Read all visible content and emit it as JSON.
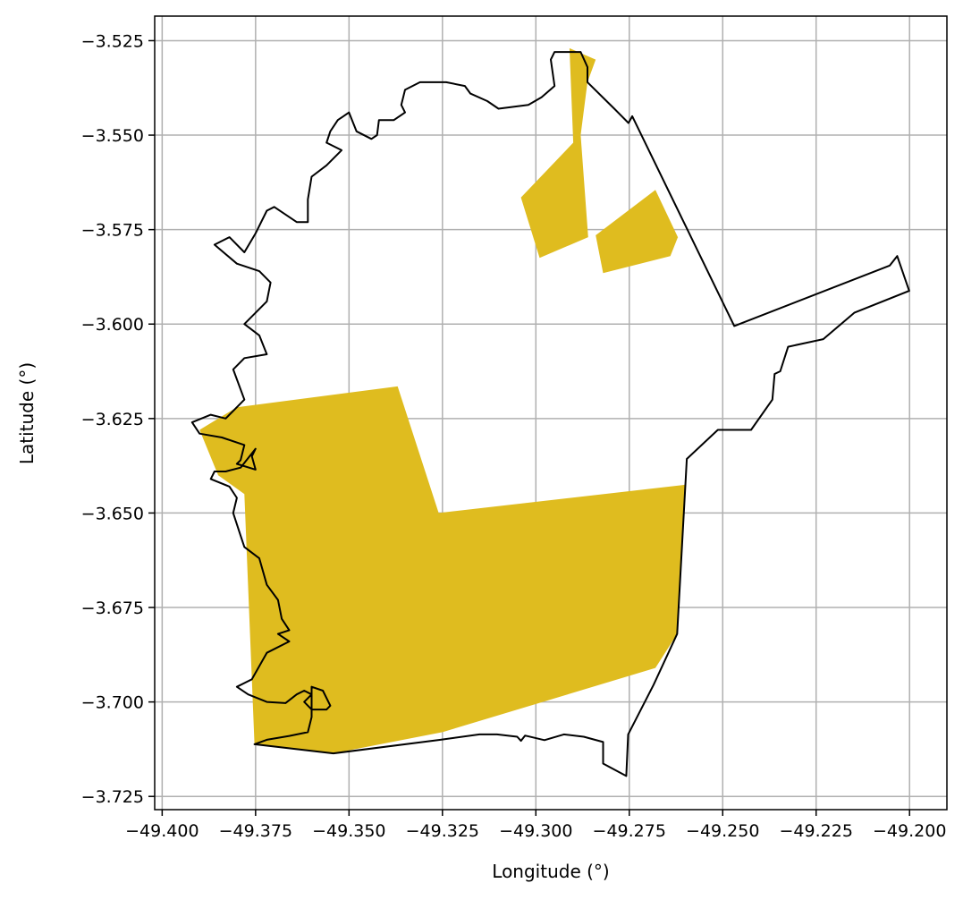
{
  "map": {
    "type": "map",
    "xlabel": "Longitude (°)",
    "ylabel": "Latitude (°)",
    "xlim": [
      -49.402,
      -49.19
    ],
    "ylim": [
      -3.7285,
      -3.5185
    ],
    "grid": true,
    "x_ticks": [
      -49.4,
      -49.375,
      -49.35,
      -49.325,
      -49.3,
      -49.275,
      -49.25,
      -49.225,
      -49.2
    ],
    "x_tick_labels": [
      "−49.400",
      "−49.375",
      "−49.350",
      "−49.325",
      "−49.300",
      "−49.275",
      "−49.250",
      "−49.225",
      "−49.200"
    ],
    "y_ticks": [
      -3.525,
      -3.55,
      -3.575,
      -3.6,
      -3.625,
      -3.65,
      -3.675,
      -3.7,
      -3.725
    ],
    "y_tick_labels": [
      "−3.525",
      "−3.550",
      "−3.575",
      "−3.600",
      "−3.625",
      "−3.650",
      "−3.675",
      "−3.700",
      "−3.725"
    ],
    "colors": {
      "fill": "#dfbc1f",
      "outline": "#000000",
      "grid": "#b0b0b0"
    },
    "boundary": [
      [
        -49.3753,
        -3.7112
      ],
      [
        -49.3542,
        -3.7136
      ],
      [
        -49.3255,
        -3.71
      ],
      [
        -49.3151,
        -3.7086
      ],
      [
        -49.3104,
        -3.7086
      ],
      [
        -49.305,
        -3.7092
      ],
      [
        -49.304,
        -3.7103
      ],
      [
        -49.3029,
        -3.7089
      ],
      [
        -49.2977,
        -3.7101
      ],
      [
        -49.2925,
        -3.7086
      ],
      [
        -49.2872,
        -3.7092
      ],
      [
        -49.282,
        -3.7106
      ],
      [
        -49.282,
        -3.7163
      ],
      [
        -49.2758,
        -3.7196
      ],
      [
        -49.2753,
        -3.7086
      ],
      [
        -49.2685,
        -3.6955
      ],
      [
        -49.2622,
        -3.682
      ],
      [
        -49.2596,
        -3.6357
      ],
      [
        -49.2513,
        -3.628
      ],
      [
        -49.2424,
        -3.628
      ],
      [
        -49.2367,
        -3.62
      ],
      [
        -49.2361,
        -3.6132
      ],
      [
        -49.2346,
        -3.6125
      ],
      [
        -49.2325,
        -3.606
      ],
      [
        -49.2231,
        -3.604
      ],
      [
        -49.2148,
        -3.597
      ],
      [
        -49.2001,
        -3.5912
      ],
      [
        -49.2033,
        -3.582
      ],
      [
        -49.2053,
        -3.5845
      ],
      [
        -49.2469,
        -3.6005
      ],
      [
        -49.2742,
        -3.545
      ],
      [
        -49.2752,
        -3.5468
      ],
      [
        -49.279,
        -3.543
      ],
      [
        -49.2862,
        -3.536
      ],
      [
        -49.2862,
        -3.532
      ],
      [
        -49.288,
        -3.528
      ],
      [
        -49.295,
        -3.528
      ],
      [
        -49.296,
        -3.53
      ],
      [
        -49.295,
        -3.537
      ],
      [
        -49.2985,
        -3.54
      ],
      [
        -49.302,
        -3.542
      ],
      [
        -49.31,
        -3.543
      ],
      [
        -49.313,
        -3.541
      ],
      [
        -49.3175,
        -3.539
      ],
      [
        -49.319,
        -3.537
      ],
      [
        -49.324,
        -3.536
      ],
      [
        -49.331,
        -3.536
      ],
      [
        -49.335,
        -3.538
      ],
      [
        -49.336,
        -3.542
      ],
      [
        -49.335,
        -3.544
      ],
      [
        -49.338,
        -3.546
      ],
      [
        -49.342,
        -3.546
      ],
      [
        -49.3425,
        -3.55
      ],
      [
        -49.344,
        -3.551
      ],
      [
        -49.348,
        -3.549
      ],
      [
        -49.35,
        -3.544
      ],
      [
        -49.353,
        -3.546
      ],
      [
        -49.355,
        -3.549
      ],
      [
        -49.356,
        -3.552
      ],
      [
        -49.352,
        -3.554
      ],
      [
        -49.356,
        -3.558
      ],
      [
        -49.36,
        -3.561
      ],
      [
        -49.361,
        -3.567
      ],
      [
        -49.361,
        -3.573
      ],
      [
        -49.364,
        -3.573
      ],
      [
        -49.37,
        -3.569
      ],
      [
        -49.372,
        -3.57
      ],
      [
        -49.375,
        -3.576
      ],
      [
        -49.378,
        -3.581
      ],
      [
        -49.382,
        -3.577
      ],
      [
        -49.386,
        -3.579
      ],
      [
        -49.38,
        -3.584
      ],
      [
        -49.374,
        -3.586
      ],
      [
        -49.371,
        -3.589
      ],
      [
        -49.372,
        -3.594
      ],
      [
        -49.378,
        -3.6
      ],
      [
        -49.374,
        -3.603
      ],
      [
        -49.372,
        -3.608
      ],
      [
        -49.378,
        -3.609
      ],
      [
        -49.381,
        -3.612
      ],
      [
        -49.378,
        -3.62
      ],
      [
        -49.383,
        -3.625
      ],
      [
        -49.387,
        -3.624
      ],
      [
        -49.392,
        -3.626
      ],
      [
        -49.39,
        -3.629
      ],
      [
        -49.384,
        -3.63
      ],
      [
        -49.378,
        -3.632
      ],
      [
        -49.379,
        -3.636
      ],
      [
        -49.38,
        -3.637
      ],
      [
        -49.375,
        -3.6385
      ],
      [
        -49.376,
        -3.635
      ],
      [
        -49.375,
        -3.633
      ],
      [
        -49.379,
        -3.638
      ],
      [
        -49.383,
        -3.639
      ],
      [
        -49.386,
        -3.639
      ],
      [
        -49.387,
        -3.641
      ],
      [
        -49.382,
        -3.643
      ],
      [
        -49.38,
        -3.646
      ],
      [
        -49.381,
        -3.65
      ],
      [
        -49.379,
        -3.656
      ],
      [
        -49.378,
        -3.659
      ],
      [
        -49.374,
        -3.662
      ],
      [
        -49.372,
        -3.669
      ],
      [
        -49.369,
        -3.673
      ],
      [
        -49.368,
        -3.678
      ],
      [
        -49.366,
        -3.681
      ],
      [
        -49.369,
        -3.682
      ],
      [
        -49.366,
        -3.684
      ],
      [
        -49.372,
        -3.687
      ],
      [
        -49.376,
        -3.694
      ],
      [
        -49.38,
        -3.696
      ],
      [
        -49.377,
        -3.698
      ],
      [
        -49.372,
        -3.7
      ],
      [
        -49.367,
        -3.7003
      ],
      [
        -49.364,
        -3.698
      ],
      [
        -49.362,
        -3.697
      ],
      [
        -49.36,
        -3.698
      ],
      [
        -49.362,
        -3.7
      ],
      [
        -49.36,
        -3.702
      ],
      [
        -49.356,
        -3.702
      ],
      [
        -49.355,
        -3.701
      ],
      [
        -49.357,
        -3.697
      ],
      [
        -49.36,
        -3.696
      ],
      [
        -49.36,
        -3.704
      ],
      [
        -49.361,
        -3.708
      ],
      [
        -49.366,
        -3.709
      ],
      [
        -49.372,
        -3.71
      ],
      [
        -49.3753,
        -3.7112
      ]
    ],
    "shaded_regions": [
      [
        [
          -49.38,
          -3.622
        ],
        [
          -49.337,
          -3.6165
        ],
        [
          -49.326,
          -3.65
        ],
        [
          -49.26,
          -3.6425
        ],
        [
          -49.2622,
          -3.682
        ],
        [
          -49.268,
          -3.691
        ],
        [
          -49.325,
          -3.708
        ],
        [
          -49.3542,
          -3.7136
        ],
        [
          -49.3753,
          -3.7112
        ],
        [
          -49.378,
          -3.645
        ],
        [
          -49.385,
          -3.64
        ],
        [
          -49.39,
          -3.628
        ]
      ],
      [
        [
          -49.304,
          -3.5665
        ],
        [
          -49.29,
          -3.552
        ],
        [
          -49.291,
          -3.527
        ],
        [
          -49.284,
          -3.53
        ],
        [
          -49.2862,
          -3.536
        ],
        [
          -49.288,
          -3.55
        ],
        [
          -49.286,
          -3.577
        ],
        [
          -49.299,
          -3.5825
        ]
      ],
      [
        [
          -49.284,
          -3.5765
        ],
        [
          -49.268,
          -3.5645
        ],
        [
          -49.262,
          -3.577
        ],
        [
          -49.264,
          -3.582
        ],
        [
          -49.282,
          -3.5865
        ]
      ]
    ]
  }
}
